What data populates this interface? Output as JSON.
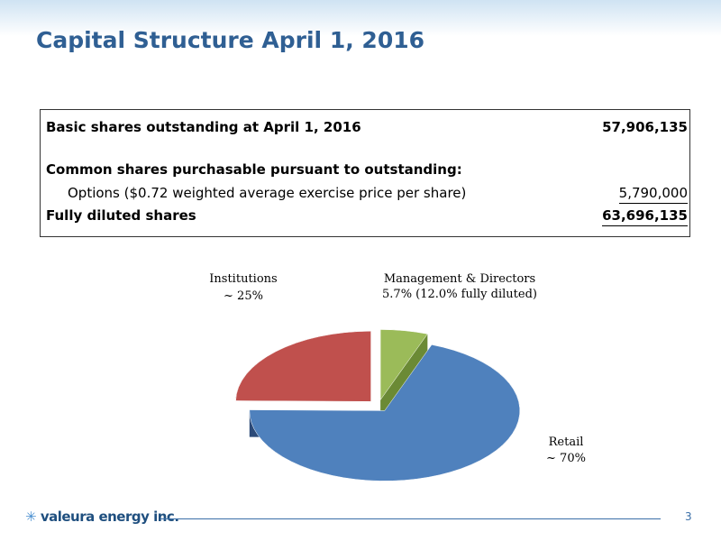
{
  "header": {
    "title": "Capital Structure April 1, 2016"
  },
  "table": {
    "rows": [
      {
        "label": "Basic shares outstanding at April 1, 2016",
        "value": "57,906,135"
      },
      {
        "label": "Common shares purchasable pursuant to outstanding:"
      },
      {
        "label": "Options ($0.72 weighted average exercise price per share)",
        "value": "5,790,000"
      },
      {
        "label": "Fully diluted shares",
        "value": "63,696,135"
      }
    ]
  },
  "chart_data": {
    "type": "pie",
    "categories": [
      "Management & Directors",
      "Retail",
      "Institutions"
    ],
    "values": [
      5.7,
      70,
      25
    ],
    "value_labels": [
      "5.7% (12.0% fully diluted)",
      "~ 70%",
      "~ 25%"
    ],
    "colors": [
      "#9bbb59",
      "#4f81bd",
      "#c0504d"
    ],
    "side_colors": [
      "#6b8a35",
      "#2c4a78",
      "#7a2a28"
    ]
  },
  "footer": {
    "logo": "valeura energy inc.",
    "page": 3
  }
}
